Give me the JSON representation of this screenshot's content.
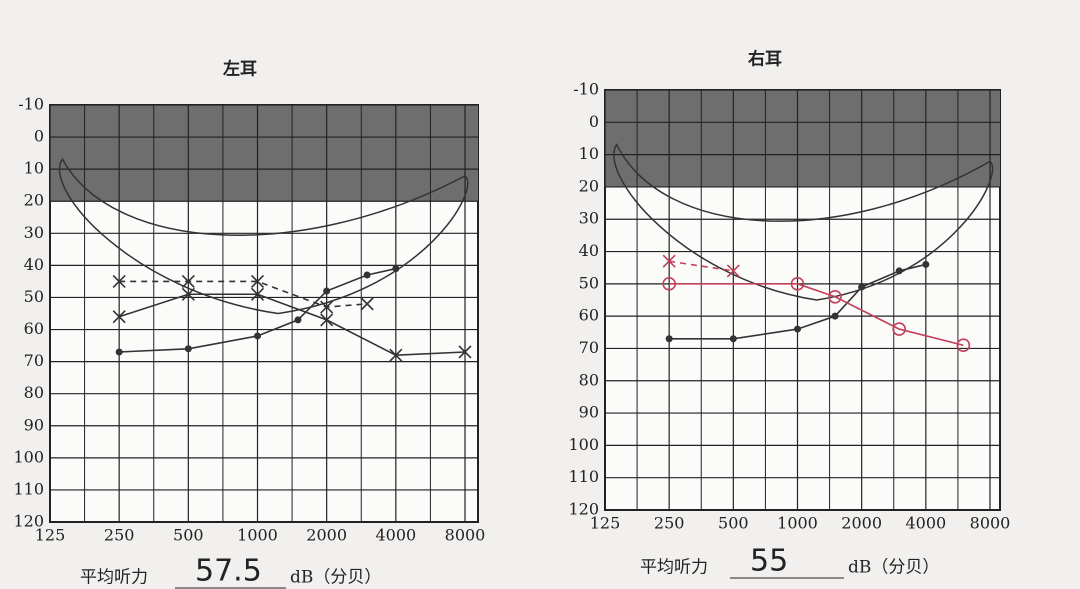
{
  "chart_data": [
    {
      "type": "line",
      "title": "左耳",
      "log_x": true,
      "grid": true,
      "xlim": [
        125,
        8000
      ],
      "xticks": [
        125,
        250,
        500,
        1000,
        2000,
        4000,
        8000
      ],
      "ylim": [
        -10,
        120
      ],
      "yticks": [
        -10,
        0,
        10,
        20,
        30,
        40,
        50,
        60,
        70,
        80,
        90,
        100,
        110,
        120
      ],
      "series": [
        {
          "color": "#333333",
          "marker": "circle",
          "dashed": false,
          "x": [
            250,
            500,
            1000,
            1500,
            2000,
            3000,
            4000
          ],
          "values": [
            67,
            66,
            62,
            57,
            48,
            43,
            41
          ]
        },
        {
          "color": "#333333",
          "marker": "cross",
          "dashed": false,
          "x": [
            250,
            500,
            1000,
            2000,
            4000,
            8000
          ],
          "values": [
            56,
            49,
            49,
            57,
            68,
            67
          ]
        },
        {
          "color": "#333333",
          "marker": "cross",
          "dashed": true,
          "x": [
            250,
            500,
            1000,
            2000,
            3000
          ],
          "values": [
            45,
            45,
            45,
            53,
            52
          ]
        }
      ],
      "average_label": "平均听力",
      "average_value": 57.5,
      "average_unit": "dB（分贝）"
    },
    {
      "type": "line",
      "title": "右耳",
      "log_x": true,
      "grid": true,
      "xlim": [
        125,
        8000
      ],
      "xticks": [
        125,
        250,
        500,
        1000,
        2000,
        4000,
        8000
      ],
      "ylim": [
        -10,
        120
      ],
      "yticks": [
        -10,
        0,
        10,
        20,
        30,
        40,
        50,
        60,
        70,
        80,
        90,
        100,
        110,
        120
      ],
      "series": [
        {
          "color": "#333333",
          "marker": "circle",
          "dashed": false,
          "x": [
            250,
            500,
            1000,
            1500,
            2000,
            3000,
            4000
          ],
          "values": [
            67,
            67,
            64,
            60,
            51,
            46,
            44
          ]
        },
        {
          "color": "#c2405a",
          "marker": "ring",
          "dashed": false,
          "x": [
            250,
            1000,
            1500,
            3000,
            6000
          ],
          "values": [
            50,
            50,
            54,
            64,
            69
          ]
        },
        {
          "color": "#c2405a",
          "marker": "cross",
          "dashed": true,
          "x": [
            250,
            500
          ],
          "values": [
            43,
            46
          ]
        }
      ],
      "average_label": "平均听力",
      "average_value": 55,
      "average_unit": "dB（分贝）"
    }
  ]
}
